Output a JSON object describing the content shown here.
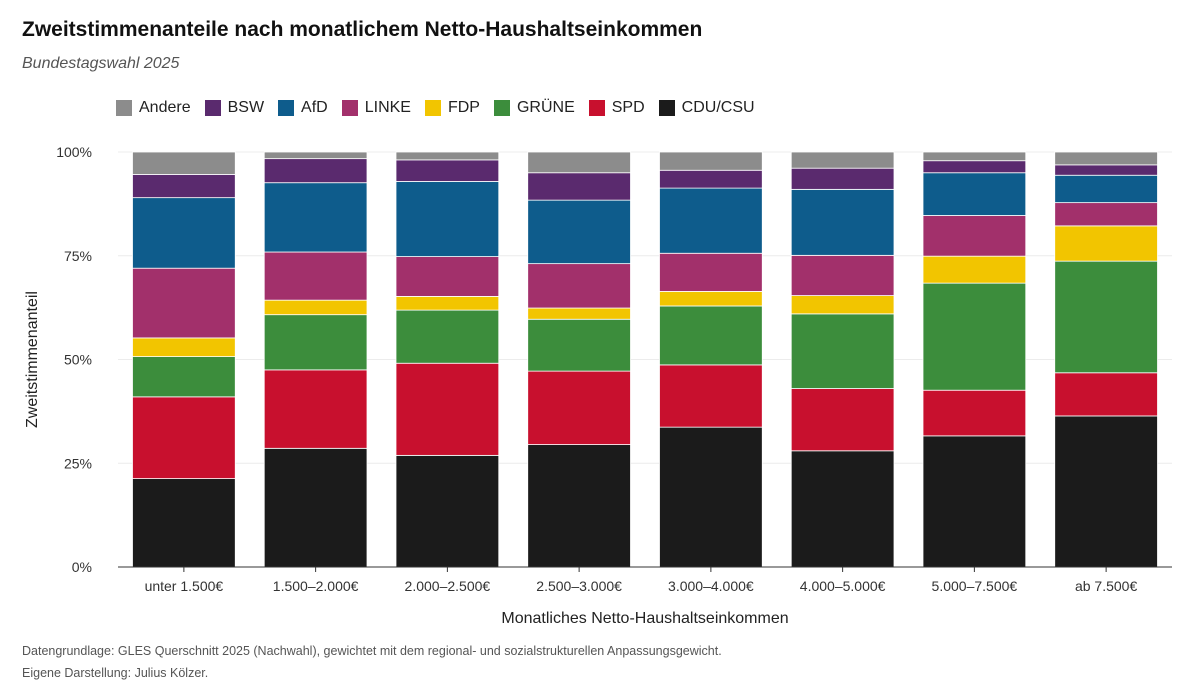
{
  "header": {
    "title": "Zweitstimmenanteile nach monatlichem Netto-Haushaltseinkommen",
    "subtitle": "Bundestagswahl 2025"
  },
  "footer": {
    "caption1": "Datengrundlage: GLES Querschnitt 2025 (Nachwahl), gewichtet mit dem regional- und sozialstrukturellen Anpassungsgewicht.",
    "caption2": "Eigene Darstellung: Julius Kölzer."
  },
  "chart_data": {
    "type": "bar",
    "stacked": true,
    "orientation": "vertical",
    "title": "Zweitstimmenanteile nach monatlichem Netto-Haushaltseinkommen",
    "subtitle": "Bundestagswahl 2025",
    "xlabel": "Monatliches Netto-Haushaltseinkommen",
    "ylabel": "Zweitstimmenanteil",
    "ylim": [
      0,
      100
    ],
    "yticks": [
      0,
      25,
      50,
      75,
      100
    ],
    "ytick_labels": [
      "0%",
      "25%",
      "50%",
      "75%",
      "100%"
    ],
    "grid": true,
    "legend_position": "top-left",
    "categories": [
      "unter 1.500€",
      "1.500–2.000€",
      "2.000–2.500€",
      "2.500–3.000€",
      "3.000–4.000€",
      "4.000–5.000€",
      "5.000–7.500€",
      "ab 7.500€"
    ],
    "legend_order": [
      "Andere",
      "BSW",
      "AfD",
      "LINKE",
      "FDP",
      "GRÜNE",
      "SPD",
      "CDU/CSU"
    ],
    "series": [
      {
        "name": "CDU/CSU",
        "color": "#1b1b1b",
        "values": [
          21.3,
          28.6,
          26.9,
          29.5,
          33.7,
          28.0,
          31.6,
          36.4
        ]
      },
      {
        "name": "SPD",
        "color": "#c8102e",
        "values": [
          19.7,
          18.9,
          22.2,
          17.7,
          15.0,
          15.0,
          11.0,
          10.4
        ]
      },
      {
        "name": "GRÜNE",
        "color": "#3c8d3c",
        "values": [
          9.7,
          13.3,
          12.8,
          12.5,
          14.2,
          18.0,
          25.8,
          26.9
        ]
      },
      {
        "name": "FDP",
        "color": "#f2c500",
        "values": [
          4.5,
          3.5,
          3.3,
          2.7,
          3.5,
          4.4,
          6.5,
          8.5
        ]
      },
      {
        "name": "LINKE",
        "color": "#a2306b",
        "values": [
          16.8,
          11.6,
          9.6,
          10.7,
          9.2,
          9.7,
          9.8,
          5.6
        ]
      },
      {
        "name": "AfD",
        "color": "#0e5c8c",
        "values": [
          17.0,
          16.7,
          18.1,
          15.3,
          15.7,
          15.9,
          10.3,
          6.6
        ]
      },
      {
        "name": "BSW",
        "color": "#5a2a6e",
        "values": [
          5.6,
          5.8,
          5.2,
          6.6,
          4.3,
          5.1,
          2.9,
          2.5
        ]
      },
      {
        "name": "Andere",
        "color": "#8c8c8c",
        "values": [
          5.4,
          1.6,
          1.9,
          5.0,
          4.4,
          3.9,
          2.1,
          3.1
        ]
      }
    ]
  }
}
